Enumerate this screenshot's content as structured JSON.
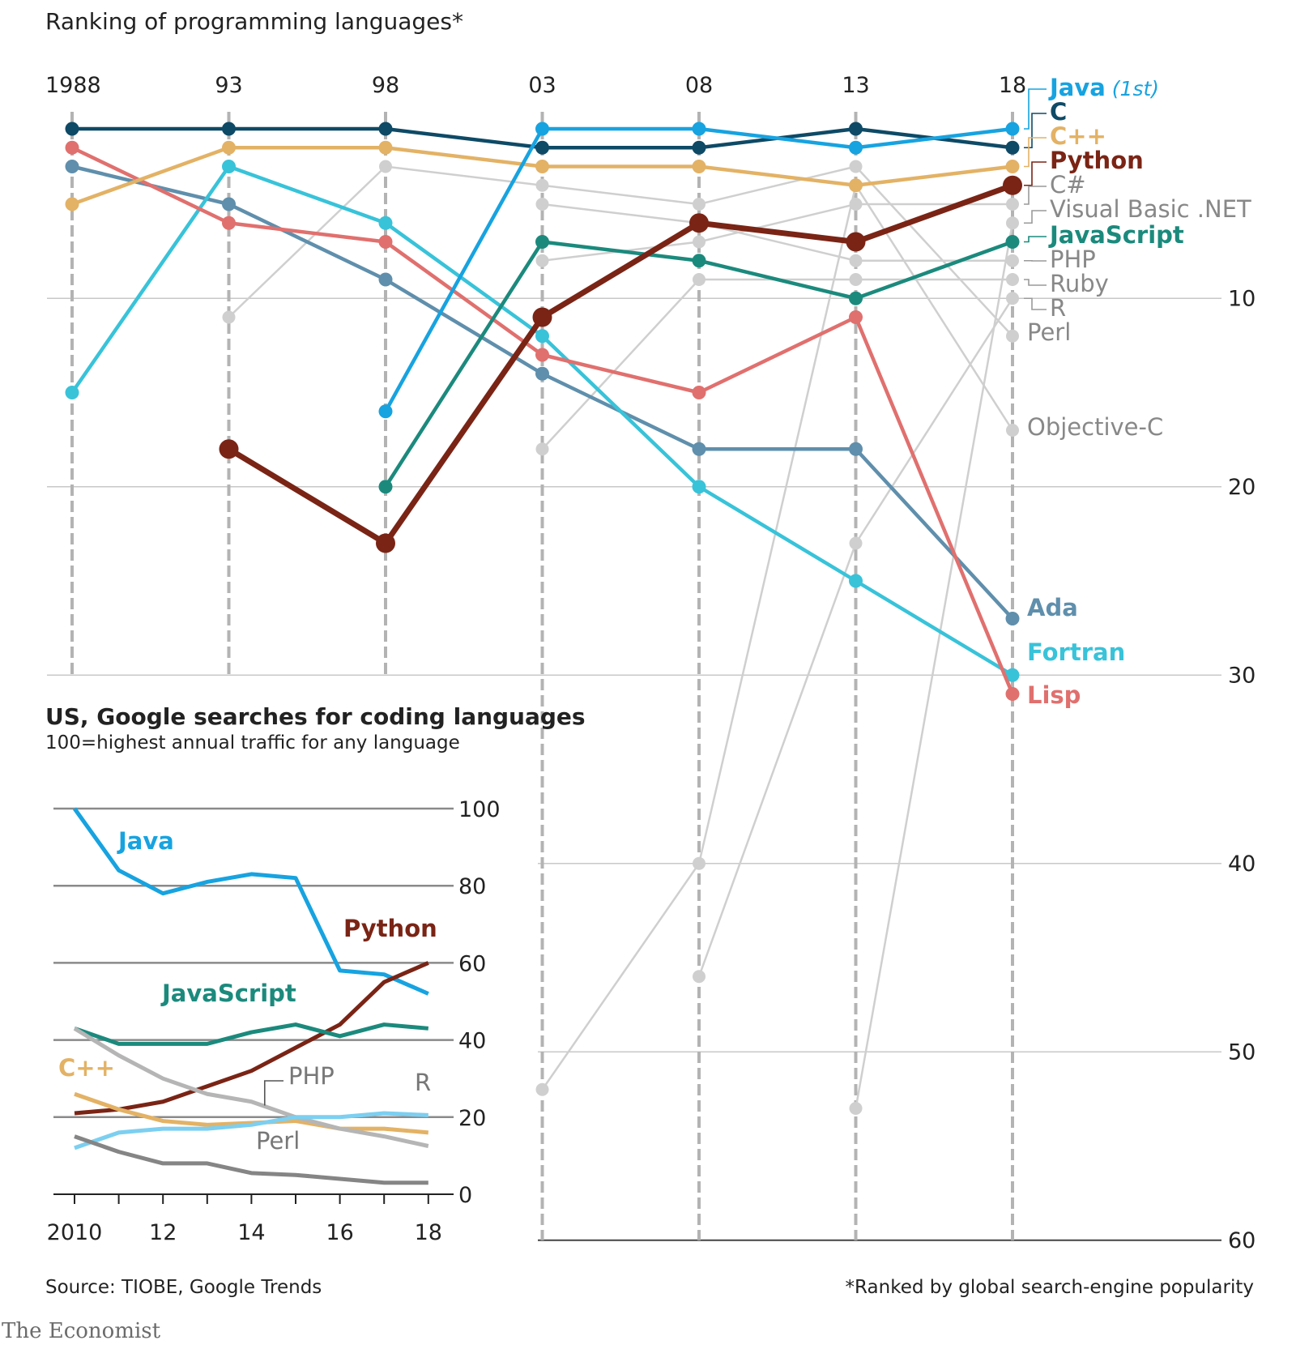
{
  "title": "Ranking of programming languages*",
  "footnote": "*Ranked by global search-engine popularity",
  "source": "Source: TIOBE, Google Trends",
  "brand": "The Economist",
  "chart_data": [
    {
      "type": "line",
      "title": "Ranking of programming languages*",
      "x": [
        1988,
        1993,
        1998,
        2003,
        2008,
        2013,
        2018
      ],
      "x_tick_labels": [
        "1988",
        "93",
        "98",
        "03",
        "08",
        "13",
        "18"
      ],
      "y_ticks": [
        10,
        20,
        30,
        40,
        50,
        60
      ],
      "ylim": [
        1,
        60
      ],
      "y_inverted": true,
      "y_axis_side": "right",
      "colors": {
        "Java": "#17a3e0",
        "C": "#0e4a66",
        "C++": "#e3b265",
        "Python": "#7a2415",
        "JavaScript": "#1b8a7d",
        "Ada": "#5f8fac",
        "Fortran": "#38c3d9",
        "Lisp": "#e0706e",
        "grey": "#cfcfcf"
      },
      "series": [
        {
          "name": "C#",
          "style": "grey",
          "values": [
            null,
            null,
            null,
            8,
            7,
            5,
            5
          ]
        },
        {
          "name": "Visual Basic .NET",
          "style": "grey",
          "values": [
            null,
            null,
            null,
            null,
            null,
            53,
            6
          ]
        },
        {
          "name": "PHP",
          "style": "grey",
          "values": [
            null,
            null,
            null,
            5,
            6,
            8,
            8
          ]
        },
        {
          "name": "Ruby",
          "style": "grey",
          "values": [
            null,
            null,
            null,
            18,
            9,
            9,
            9
          ]
        },
        {
          "name": "R",
          "style": "grey",
          "values": [
            null,
            null,
            null,
            null,
            46,
            23,
            10
          ]
        },
        {
          "name": "Perl",
          "style": "grey",
          "values": [
            null,
            11,
            3,
            4,
            5,
            3,
            12
          ]
        },
        {
          "name": "Objective-C",
          "style": "grey",
          "values": [
            null,
            null,
            null,
            52,
            40,
            4,
            17
          ]
        },
        {
          "name": "Ada",
          "style": "Ada",
          "values": [
            3,
            5,
            9,
            14,
            18,
            18,
            27
          ]
        },
        {
          "name": "Fortran",
          "style": "Fortran",
          "values": [
            15,
            3,
            6,
            12,
            20,
            25,
            30
          ]
        },
        {
          "name": "Lisp",
          "style": "Lisp",
          "values": [
            2,
            6,
            7,
            13,
            15,
            11,
            31
          ]
        },
        {
          "name": "JavaScript",
          "style": "JavaScript",
          "values": [
            null,
            null,
            20,
            7,
            8,
            10,
            7
          ]
        },
        {
          "name": "C++",
          "style": "C++",
          "values": [
            5,
            2,
            2,
            3,
            3,
            4,
            3
          ]
        },
        {
          "name": "C",
          "style": "C",
          "values": [
            1,
            1,
            1,
            2,
            2,
            1,
            2
          ]
        },
        {
          "name": "Java",
          "style": "Java",
          "values": [
            null,
            null,
            16,
            1,
            1,
            2,
            1
          ]
        },
        {
          "name": "Python",
          "style": "Python",
          "values": [
            null,
            18,
            23,
            11,
            6,
            7,
            4
          ]
        }
      ],
      "labels": [
        {
          "text": "Java",
          "extra": "(1st)",
          "style": "Java",
          "bold": true
        },
        {
          "text": "C",
          "style": "C",
          "bold": true
        },
        {
          "text": "C++",
          "style": "C++",
          "bold": true
        },
        {
          "text": "Python",
          "style": "Python",
          "bold": true
        },
        {
          "text": "C#",
          "style": "grey",
          "bold": false
        },
        {
          "text": "Visual Basic .NET",
          "style": "grey",
          "bold": false
        },
        {
          "text": "JavaScript",
          "style": "JavaScript",
          "bold": true
        },
        {
          "text": "PHP",
          "style": "grey",
          "bold": false
        },
        {
          "text": "Ruby",
          "style": "grey",
          "bold": false
        },
        {
          "text": "R",
          "style": "grey",
          "bold": false
        },
        {
          "text": "Perl",
          "style": "grey",
          "bold": false
        },
        {
          "text": "Objective-C",
          "style": "grey",
          "bold": false
        },
        {
          "text": "Ada",
          "style": "Ada",
          "bold": true
        },
        {
          "text": "Fortran",
          "style": "Fortran",
          "bold": true
        },
        {
          "text": "Lisp",
          "style": "Lisp",
          "bold": true
        }
      ]
    },
    {
      "type": "line",
      "title": "US, Google searches for coding languages",
      "subtitle": "100=highest annual traffic for any language",
      "x": [
        2010,
        2011,
        2012,
        2013,
        2014,
        2015,
        2016,
        2017,
        2018
      ],
      "x_tick_labels": [
        "2010",
        "12",
        "14",
        "16",
        "18"
      ],
      "x_tick_values": [
        2010,
        2012,
        2014,
        2016,
        2018
      ],
      "y_ticks": [
        0,
        20,
        40,
        60,
        80,
        100
      ],
      "ylim": [
        0,
        100
      ],
      "y_axis_side": "right",
      "colors": {
        "Java": "#17a3e0",
        "Python": "#7a2415",
        "JavaScript": "#1b8a7d",
        "C++": "#e3b265",
        "PHP": "#b5b5b5",
        "R": "#7ccff0",
        "Perl": "#858585"
      },
      "series": [
        {
          "name": "Java",
          "values": [
            100,
            84,
            78,
            81,
            83,
            82,
            58,
            57,
            52
          ]
        },
        {
          "name": "Python",
          "values": [
            21,
            22,
            24,
            28,
            32,
            38,
            44,
            55,
            60
          ]
        },
        {
          "name": "JavaScript",
          "values": [
            43,
            39,
            39,
            39,
            42,
            44,
            41,
            44,
            43
          ]
        },
        {
          "name": "C++",
          "values": [
            26,
            22,
            19,
            18,
            18.5,
            19,
            17,
            17,
            16
          ]
        },
        {
          "name": "PHP",
          "values": [
            43,
            36,
            30,
            26,
            24,
            20,
            17,
            15,
            12.5
          ]
        },
        {
          "name": "R",
          "values": [
            12,
            16,
            17,
            17,
            18,
            20,
            20,
            21,
            20.5
          ]
        },
        {
          "name": "Perl",
          "values": [
            15,
            11,
            8,
            8,
            5.5,
            5,
            4,
            3,
            3
          ]
        }
      ],
      "labels": [
        {
          "text": "Java",
          "style": "Java",
          "bold": true
        },
        {
          "text": "Python",
          "style": "Python",
          "bold": true
        },
        {
          "text": "JavaScript",
          "style": "JavaScript",
          "bold": true
        },
        {
          "text": "C++",
          "style": "C++",
          "bold": true
        },
        {
          "text": "PHP",
          "style": "PHP",
          "bold": false
        },
        {
          "text": "R",
          "style": "PHP",
          "bold": false
        },
        {
          "text": "Perl",
          "style": "PHP",
          "bold": false
        }
      ]
    }
  ]
}
